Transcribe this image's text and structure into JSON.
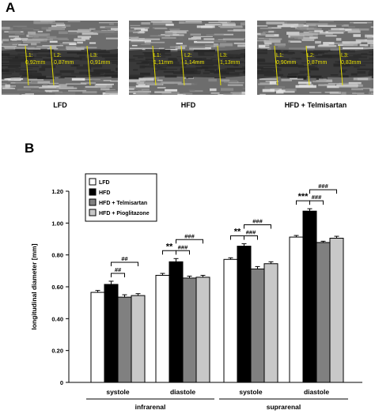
{
  "panel_a": {
    "letter": "A",
    "images": [
      {
        "label": "LFD",
        "measurements": [
          "L1:\n0,92mm",
          "L2:\n0,87mm",
          "L3:\n0,91mm"
        ]
      },
      {
        "label": "HFD",
        "measurements": [
          "L1:\n1,11mm",
          "L2:\n1,14mm",
          "L3:\n1,13mm"
        ]
      },
      {
        "label": "HFD + Telmisartan",
        "measurements": [
          "L1:\n0,90mm",
          "L2:\n0,87mm",
          "L3:\n0,83mm"
        ]
      }
    ],
    "measurement_color": "#e8e000"
  },
  "panel_b": {
    "letter": "B"
  },
  "chart_data": {
    "type": "bar",
    "ylabel": "longitudinal diameter [mm]",
    "ylim": [
      0,
      1.2
    ],
    "yticks": [
      "0",
      "0.20",
      "0.40",
      "0.60",
      "0.80",
      "1.00",
      "1.20"
    ],
    "categories": [
      "systole",
      "diastole",
      "systole",
      "diastole"
    ],
    "groups": [
      {
        "label": "infrarenal",
        "categories": [
          0,
          1
        ]
      },
      {
        "label": "suprarenal",
        "categories": [
          2,
          3
        ]
      }
    ],
    "legend_position": "top-left",
    "series": [
      {
        "name": "LFD",
        "color": "#ffffff",
        "values": [
          0.565,
          0.672,
          0.772,
          0.912
        ],
        "errors": [
          0.012,
          0.012,
          0.01,
          0.01
        ]
      },
      {
        "name": "HFD",
        "color": "#000000",
        "values": [
          0.615,
          0.757,
          0.855,
          1.075
        ],
        "errors": [
          0.02,
          0.02,
          0.015,
          0.015
        ]
      },
      {
        "name": "HFD + Telmisartan",
        "color": "#808080",
        "values": [
          0.535,
          0.655,
          0.712,
          0.878
        ],
        "errors": [
          0.015,
          0.012,
          0.015,
          0.008
        ]
      },
      {
        "name": "HFD + Pioglitazone",
        "color": "#c8c8c8",
        "values": [
          0.545,
          0.66,
          0.745,
          0.905
        ],
        "errors": [
          0.012,
          0.012,
          0.012,
          0.012
        ]
      }
    ],
    "annotations": [
      {
        "category": 0,
        "from": 1,
        "to": 2,
        "label": "##"
      },
      {
        "category": 0,
        "from": 1,
        "to": 3,
        "label": "##"
      },
      {
        "category": 1,
        "from": 0,
        "to": 1,
        "label": "**"
      },
      {
        "category": 1,
        "from": 1,
        "to": 2,
        "label": "###"
      },
      {
        "category": 1,
        "from": 1,
        "to": 3,
        "label": "###"
      },
      {
        "category": 2,
        "from": 0,
        "to": 1,
        "label": "**"
      },
      {
        "category": 2,
        "from": 1,
        "to": 2,
        "label": "###"
      },
      {
        "category": 2,
        "from": 1,
        "to": 3,
        "label": "###"
      },
      {
        "category": 3,
        "from": 0,
        "to": 1,
        "label": "***"
      },
      {
        "category": 3,
        "from": 1,
        "to": 2,
        "label": "###"
      },
      {
        "category": 3,
        "from": 1,
        "to": 3,
        "label": "###"
      }
    ]
  }
}
